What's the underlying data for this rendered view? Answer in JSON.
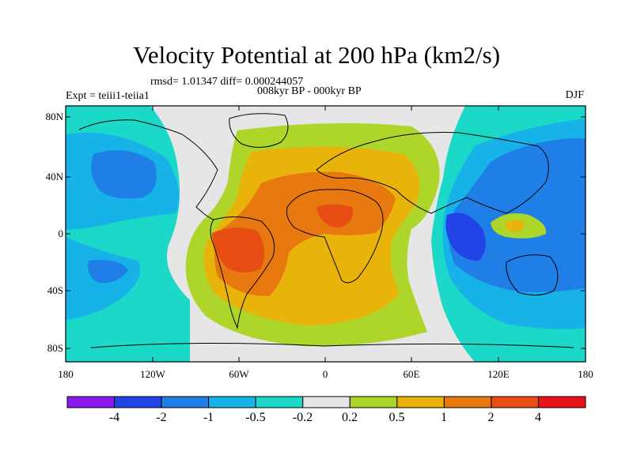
{
  "header": {
    "title": "Velocity Potential at 200 hPa (km2/s)",
    "stats": "rmsd= 1.01347 diff= 0.000244057",
    "period": "008kyr BP - 000kyr BP",
    "experiment": "Expt = teiii1-teiia1",
    "season": "DJF"
  },
  "axes": {
    "lat_labels": [
      "80N",
      "40N",
      "0",
      "40S",
      "80S"
    ],
    "lon_labels": [
      "180",
      "120W",
      "60W",
      "0",
      "60E",
      "120E",
      "180"
    ]
  },
  "colorbar": {
    "labels": [
      "-4",
      "-2",
      "-1",
      "-0.5",
      "-0.2",
      "0.2",
      "0.5",
      "1",
      "2",
      "4"
    ],
    "colors": [
      "#8B1AF0",
      "#2244E6",
      "#1F7FE6",
      "#16B2E8",
      "#1BD8C8",
      "#E6E6E6",
      "#AED62A",
      "#E8B40C",
      "#E87810",
      "#E84E14",
      "#E8141A"
    ]
  }
}
